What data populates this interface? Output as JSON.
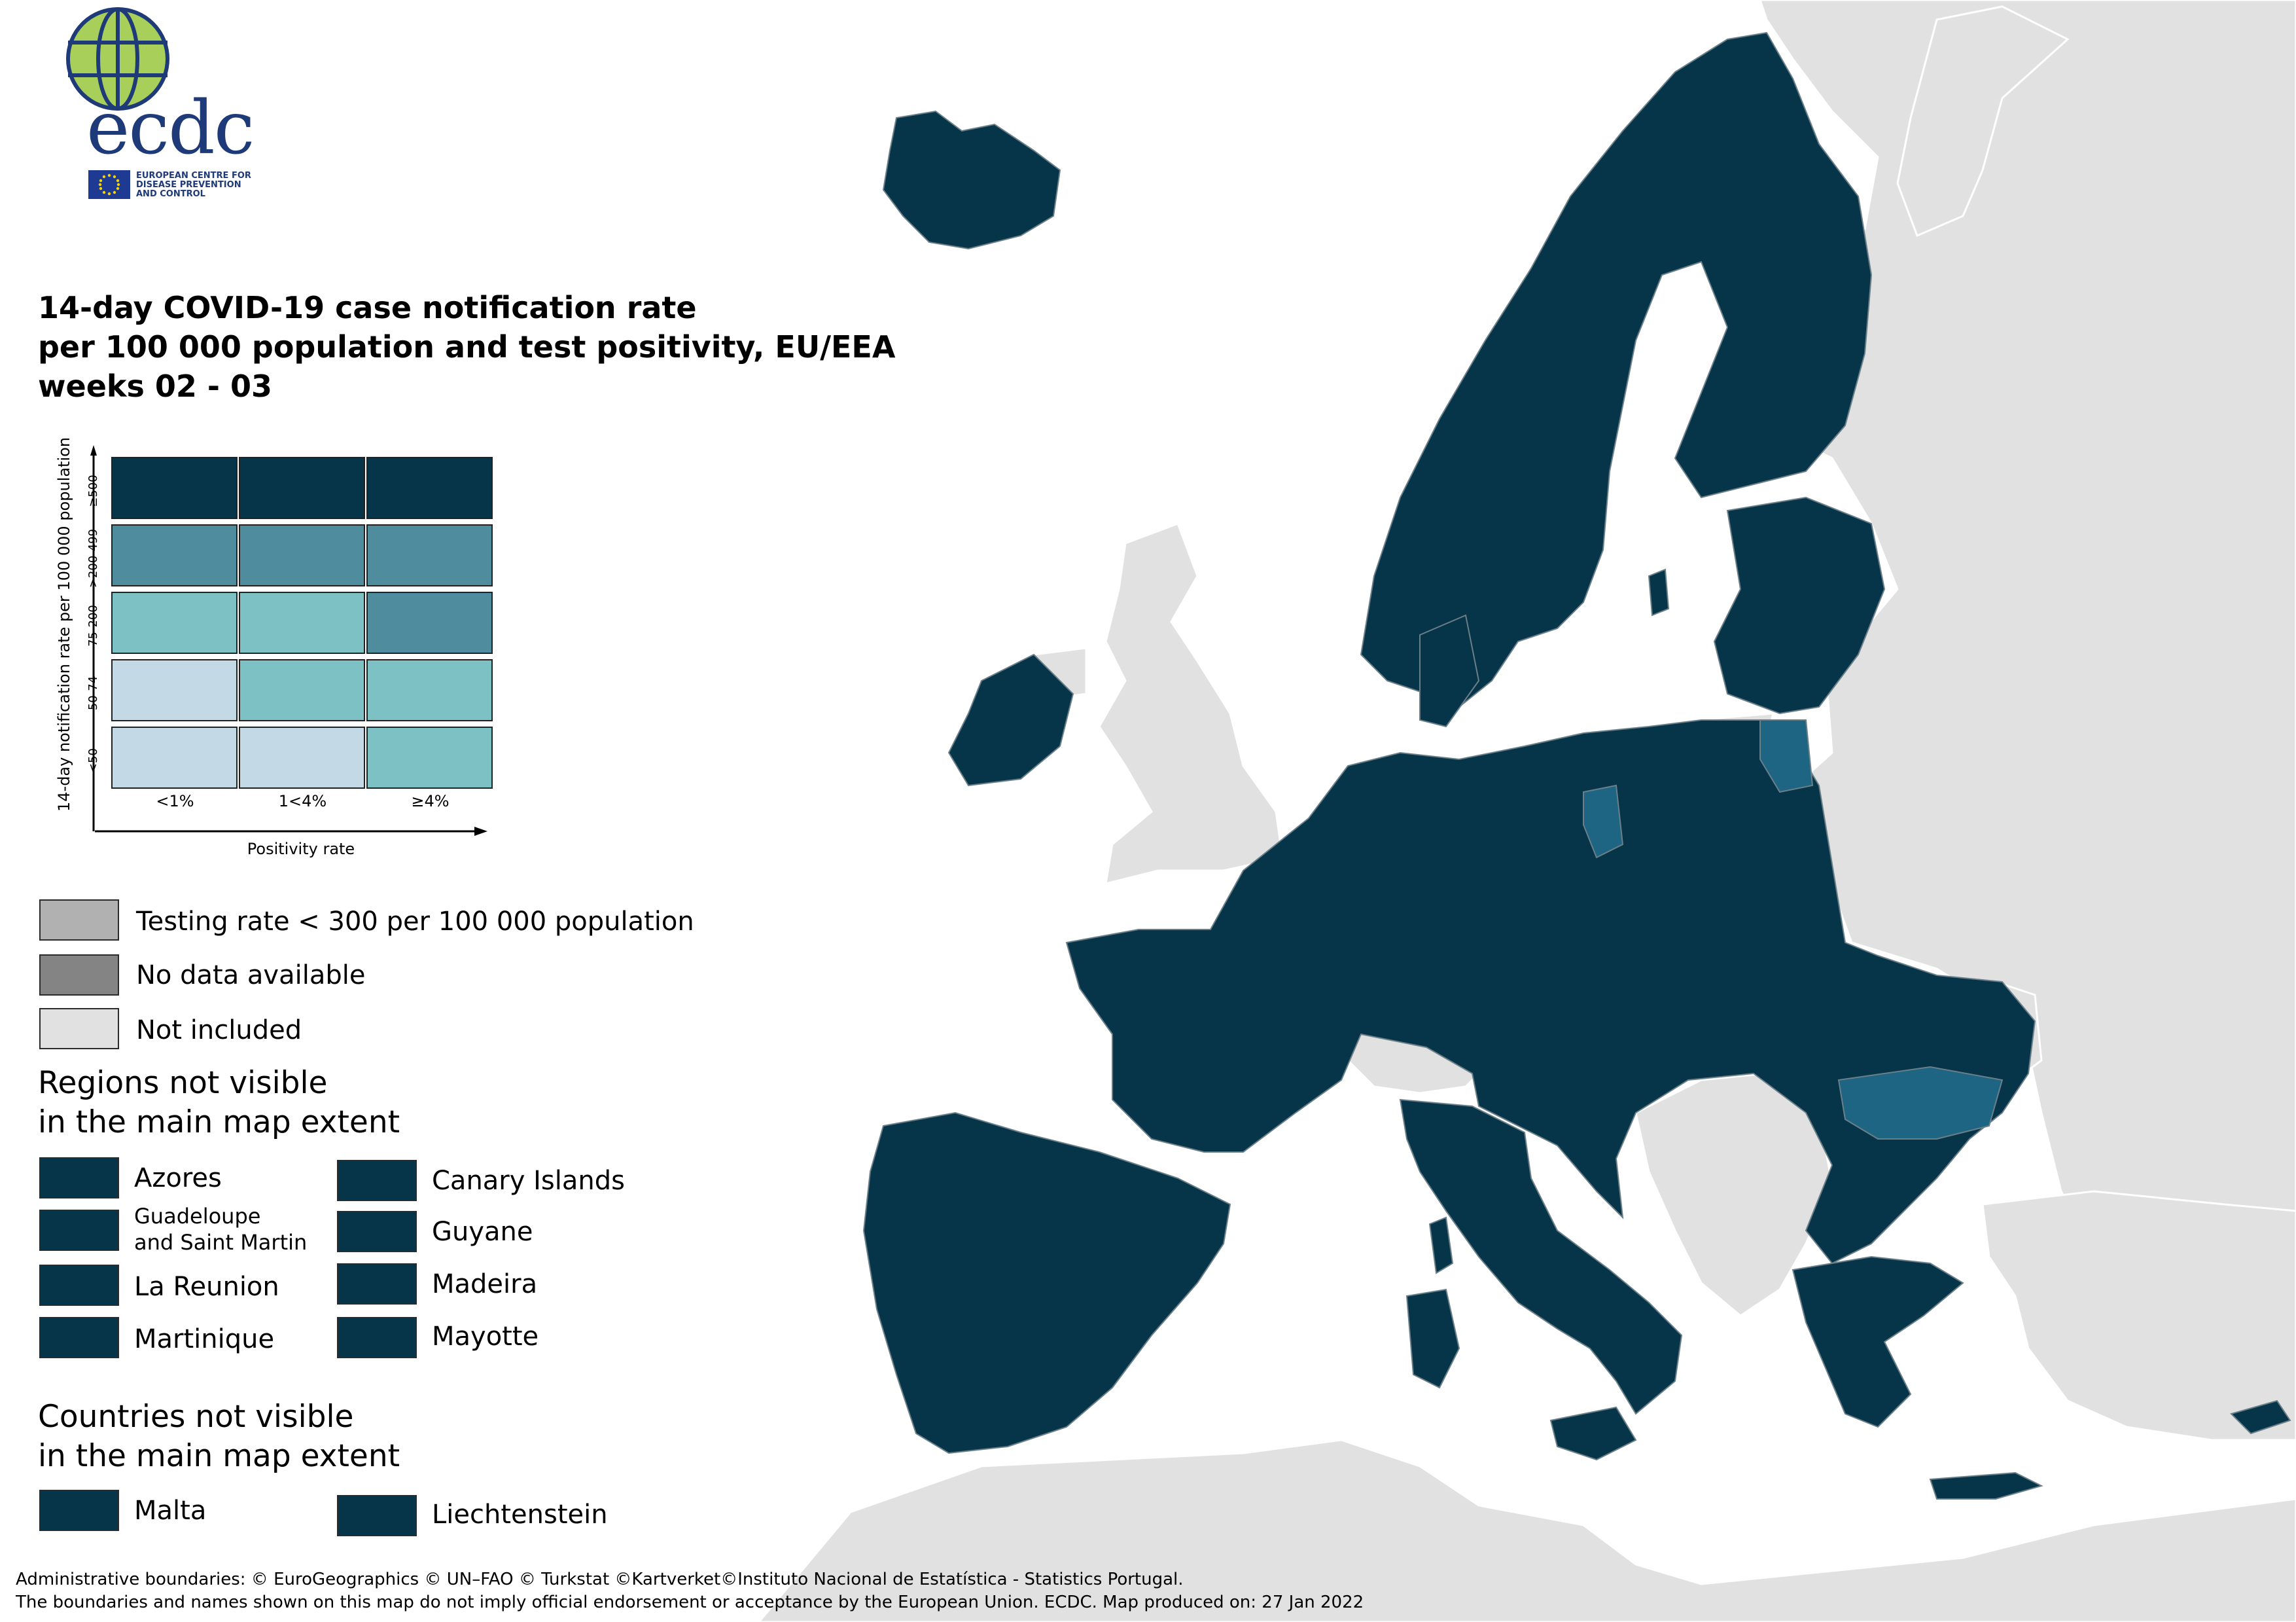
{
  "logo": {
    "wordmark": "ecdc",
    "agency_lines": [
      "EUROPEAN CENTRE FOR",
      "DISEASE PREVENTION",
      "AND CONTROL"
    ]
  },
  "title": {
    "line1": "14-day COVID-19 case notification rate",
    "line2": "per 100 000 population and test positivity, EU/EEA",
    "line3": "weeks 02 - 03"
  },
  "bivariate_legend": {
    "y_axis_title": "14-day notification rate per 100 000 population",
    "x_axis_title": "Positivity rate",
    "rows": [
      "≥500",
      ">200-499",
      "75-200",
      "50-74",
      "<50"
    ],
    "columns": [
      "<1%",
      "1<4%",
      "≥4%"
    ],
    "cell_colors": [
      [
        "#063449",
        "#063449",
        "#063449"
      ],
      [
        "#4e8c9e",
        "#4e8c9e",
        "#4e8c9e"
      ],
      [
        "#7dc1c5",
        "#7dc1c5",
        "#4e8c9e"
      ],
      [
        "#c3dae6",
        "#7dc1c5",
        "#7dc1c5"
      ],
      [
        "#c3dae6",
        "#c3dae6",
        "#7dc1c5"
      ]
    ]
  },
  "status_legend": [
    {
      "label": "Testing rate < 300 per 100 000 population",
      "color": "#b1b1b1"
    },
    {
      "label": "No data available",
      "color": "#848484"
    },
    {
      "label": "Not included",
      "color": "#e1e1e1"
    }
  ],
  "regions_not_visible": {
    "title_line1": "Regions not visible",
    "title_line2": "in the main map extent",
    "items": [
      {
        "label": "Azores",
        "color": "#063449"
      },
      {
        "label": "Canary Islands",
        "color": "#063449"
      },
      {
        "label": "Guadeloupe",
        "label2": "and Saint Martin",
        "color": "#063449"
      },
      {
        "label": "Guyane",
        "color": "#063449"
      },
      {
        "label": "La Reunion",
        "color": "#063449"
      },
      {
        "label": "Madeira",
        "color": "#063449"
      },
      {
        "label": "Martinique",
        "color": "#063449"
      },
      {
        "label": "Mayotte",
        "color": "#063449"
      }
    ]
  },
  "countries_not_visible": {
    "title_line1": "Countries not visible",
    "title_line2": "in the main map extent",
    "items": [
      {
        "label": "Malta",
        "color": "#063449"
      },
      {
        "label": "Liechtenstein",
        "color": "#063449"
      }
    ]
  },
  "footer": {
    "line1": "Administrative boundaries: © EuroGeographics © UN–FAO © Turkstat ©Kartverket©Instituto Nacional de Estatística - Statistics Portugal.",
    "line2": "The boundaries and names shown on this map do not imply official endorsement or acceptance by the European Union. ECDC. Map produced on: 27 Jan 2022"
  },
  "map_colors": {
    "high": "#063449",
    "mid": "#1d6583",
    "not_included": "#e1e1e1",
    "sea": "#ffffff",
    "borders": "#7a8a92"
  }
}
